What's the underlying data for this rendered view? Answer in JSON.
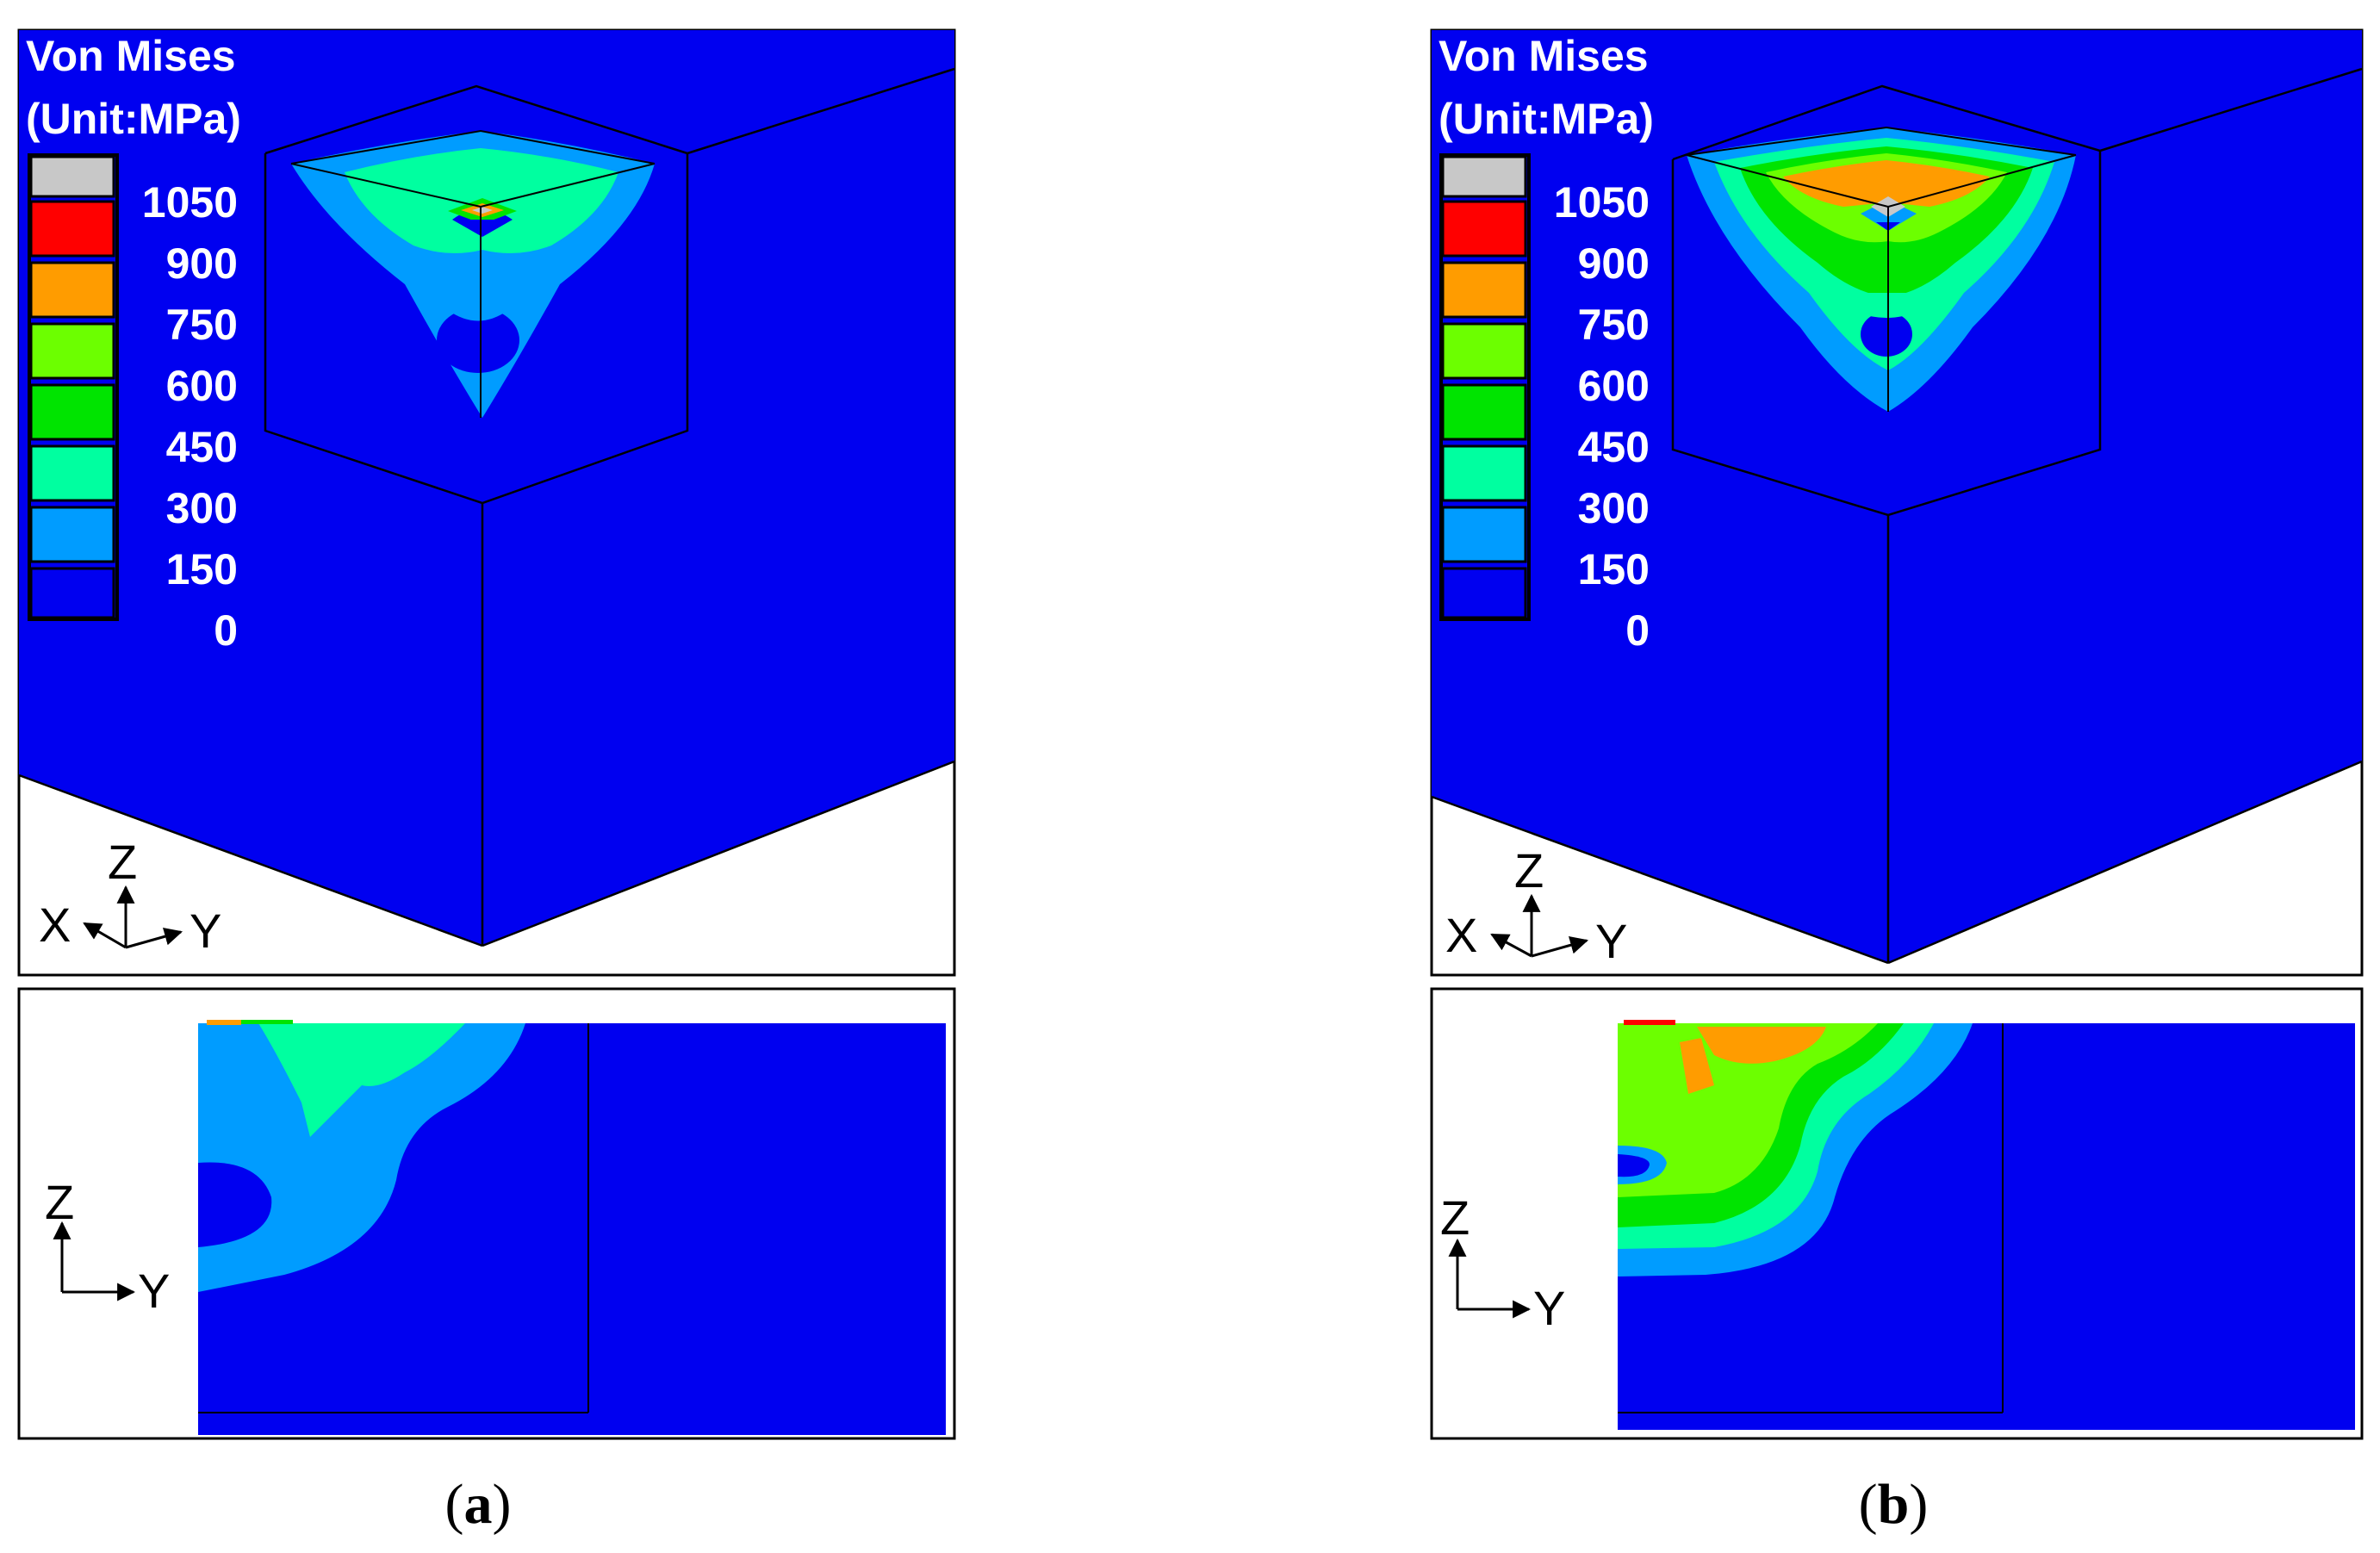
{
  "panels": [
    {
      "id": "a",
      "caption": {
        "open": "(",
        "letter": "a",
        "close": ")"
      },
      "legend": {
        "title_line1": "Von Mises",
        "title_line2": "(Unit:MPa)",
        "values": [
          "1050",
          "900",
          "750",
          "600",
          "450",
          "300",
          "150",
          "0"
        ]
      },
      "triad_3d": {
        "z": "Z",
        "x": "X",
        "y": "Y"
      },
      "triad_2d": {
        "z": "Z",
        "y": "Y"
      }
    },
    {
      "id": "b",
      "caption": {
        "open": "(",
        "letter": "b",
        "close": ")"
      },
      "legend": {
        "title_line1": "Von Mises",
        "title_line2": "(Unit:MPa)",
        "values": [
          "1050",
          "900",
          "750",
          "600",
          "450",
          "300",
          "150",
          "0"
        ]
      },
      "triad_3d": {
        "z": "Z",
        "x": "X",
        "y": "Y"
      },
      "triad_2d": {
        "z": "Z",
        "y": "Y"
      }
    }
  ],
  "colors": {
    "band_0_150": "#0000f0",
    "band_150_300": "#009cff",
    "band_300_450": "#00ffa0",
    "band_450_600": "#00e400",
    "band_600_750": "#6cff00",
    "band_750_900": "#ff9c00",
    "band_900_1050": "#ff0000",
    "band_above_1050": "#c8c8c8"
  }
}
